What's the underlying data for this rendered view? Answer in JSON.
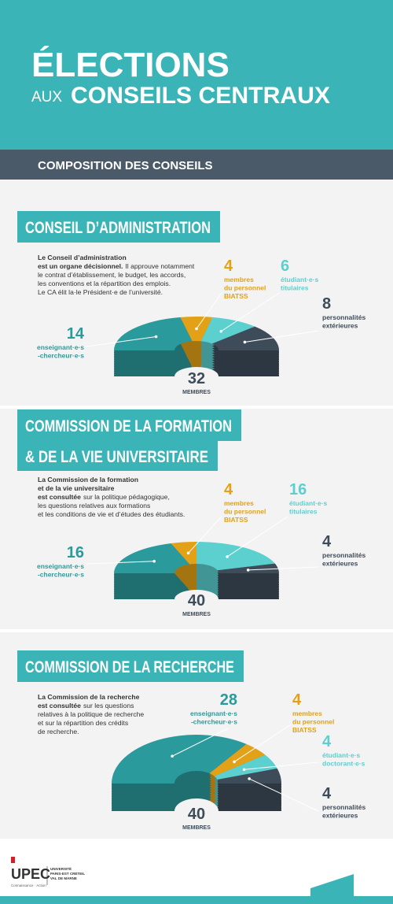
{
  "header": {
    "title": "ÉLECTIONS",
    "prefix": "AUX",
    "subtitle": "CONSEILS CENTRAUX"
  },
  "banner": "COMPOSITION DES CONSEILS",
  "sections": [
    {
      "title_lines": [
        "CONSEIL D’ADMINISTRATION"
      ],
      "description": [
        {
          "bold": "Le Conseil d’administration"
        },
        {
          "bold": "est un organe décisionnel.",
          "text": "Il approuve notamment"
        },
        {
          "text": "le contrat d’établissement, le budget, les accords,"
        },
        {
          "text": "les conventions et la répartition des emplois."
        },
        {
          "text": "Le CA élit la·le Président·e de l’université."
        }
      ],
      "chart_data": {
        "type": "half-donut",
        "categories": [
          [
            "enseignant·e·s",
            "-chercheur·e·s"
          ],
          [
            "membres",
            "du personnel",
            "BIATSS"
          ],
          [
            "étudiant·e·s",
            "titulaires"
          ],
          [
            "personnalités",
            "extérieures"
          ]
        ],
        "values": [
          14,
          4,
          6,
          8
        ],
        "colors": [
          "#2b9a9d",
          "#e2a116",
          "#5ccfcf",
          "#3e4c5a"
        ],
        "total": 32,
        "total_label": "MEMBRES"
      }
    },
    {
      "title_lines": [
        "COMMISSION DE LA FORMATION",
        "& DE LA VIE UNIVERSITAIRE"
      ],
      "description": [
        {
          "bold": "La Commission de la formation"
        },
        {
          "bold": "et de la vie universitaire"
        },
        {
          "bold": "est consultée",
          "text": "sur la politique pédagogique,"
        },
        {
          "text": "les questions relatives aux formations"
        },
        {
          "text": "et les conditions de vie et d’études des étudiants."
        }
      ],
      "chart_data": {
        "type": "half-donut",
        "categories": [
          [
            "enseignant·e·s",
            "-chercheur·e·s"
          ],
          [
            "membres",
            "du personnel",
            "BIATSS"
          ],
          [
            "étudiant·e·s",
            "titulaires"
          ],
          [
            "personnalités",
            "extérieures"
          ]
        ],
        "values": [
          16,
          4,
          16,
          4
        ],
        "colors": [
          "#2b9a9d",
          "#e2a116",
          "#5ccfcf",
          "#3e4c5a"
        ],
        "total": 40,
        "total_label": "MEMBRES"
      }
    },
    {
      "title_lines": [
        "COMMISSION DE LA RECHERCHE"
      ],
      "description": [
        {
          "bold": "La Commission de la recherche"
        },
        {
          "bold": "est consultée",
          "text": "sur les questions"
        },
        {
          "text": "relatives à la politique de recherche"
        },
        {
          "text": "et sur la répartition des crédits"
        },
        {
          "text": "de recherche."
        }
      ],
      "chart_data": {
        "type": "half-donut",
        "categories": [
          [
            "enseignant·e·s",
            "-chercheur·e·s"
          ],
          [
            "membres",
            "du personnel",
            "BIATSS"
          ],
          [
            "étudiant·e·s",
            "doctorant·e·s"
          ],
          [
            "personnalités",
            "extérieures"
          ]
        ],
        "values": [
          28,
          4,
          4,
          4
        ],
        "colors": [
          "#2b9a9d",
          "#e2a116",
          "#5ccfcf",
          "#3e4c5a"
        ],
        "total": 40,
        "total_label": "MEMBRES"
      }
    }
  ],
  "footer": {
    "logo": "UPEC",
    "university": [
      "UNIVERSITÉ",
      "PARIS-EST CRÉTEIL",
      "VAL DE MARNE"
    ],
    "motto": "Connaissance · Action"
  }
}
